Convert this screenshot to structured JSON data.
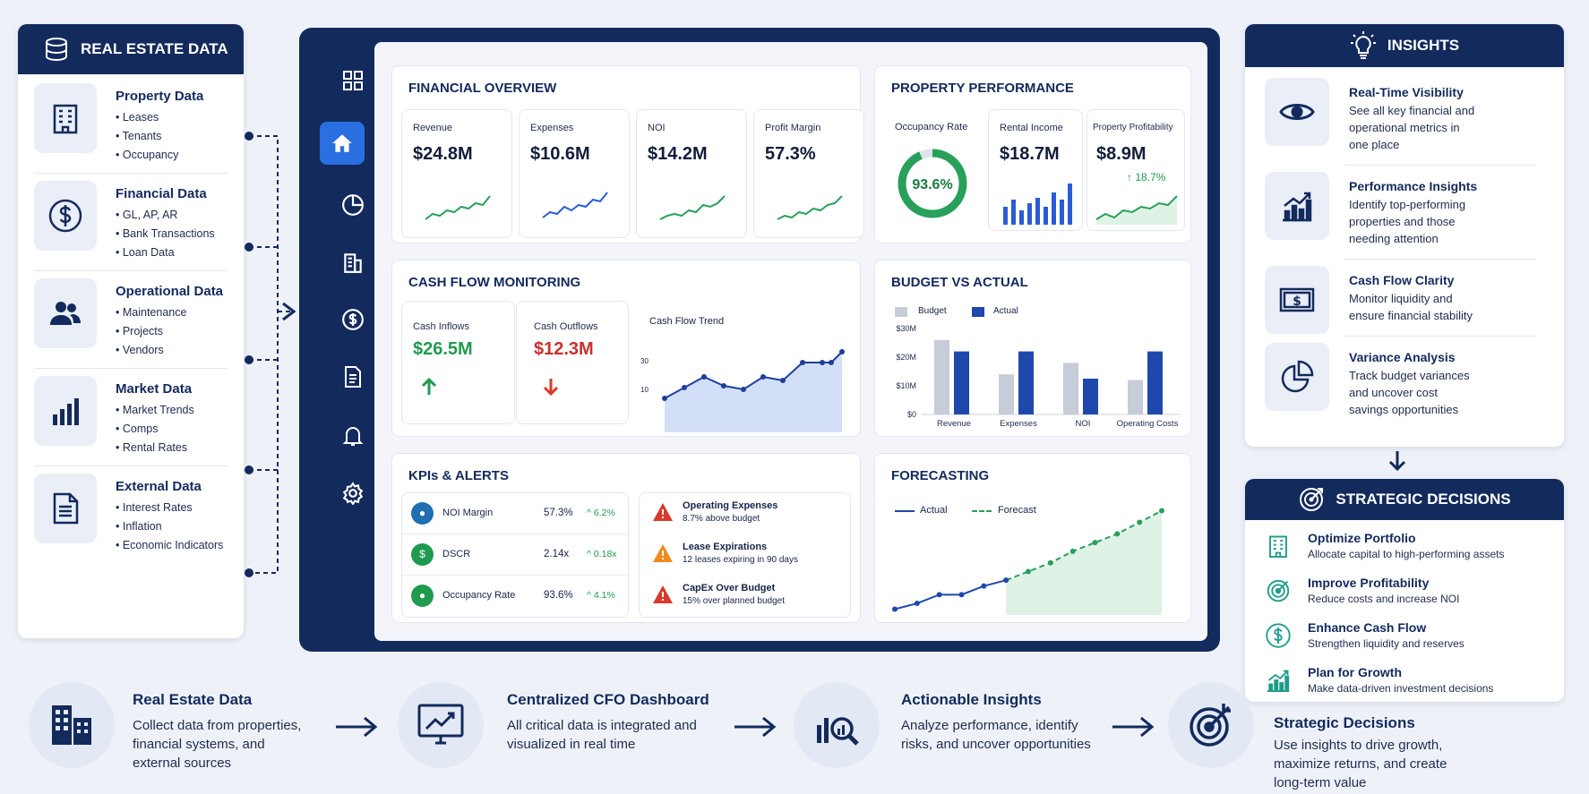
{
  "left": {
    "header": "REAL ESTATE DATA",
    "groups": [
      {
        "title": "Property Data",
        "items": [
          "• Leases",
          "• Tenants",
          "• Occupancy"
        ],
        "icon": "building-icon"
      },
      {
        "title": "Financial Data",
        "items": [
          "• GL, AP, AR",
          "• Bank Transactions",
          "• Loan Data"
        ],
        "icon": "dollar-icon"
      },
      {
        "title": "Operational Data",
        "items": [
          "• Maintenance",
          "• Projects",
          "• Vendors"
        ],
        "icon": "people-icon"
      },
      {
        "title": "Market Data",
        "items": [
          "• Market Trends",
          "• Comps",
          "• Rental Rates"
        ],
        "icon": "bar-chart-icon"
      },
      {
        "title": "External Data",
        "items": [
          "• Interest Rates",
          "• Inflation",
          "• Economic Indicators"
        ],
        "icon": "document-icon"
      }
    ]
  },
  "dashboard": {
    "sidebar": [
      "grid-icon",
      "home-icon",
      "pie-chart-icon",
      "building-icon",
      "dollar-icon",
      "document-icon",
      "bell-icon",
      "gear-icon"
    ],
    "financial_overview": {
      "title": "FINANCIAL OVERVIEW",
      "kpis": [
        {
          "label": "Revenue",
          "value": "$24.8M"
        },
        {
          "label": "Expenses",
          "value": "$10.6M"
        },
        {
          "label": "NOI",
          "value": "$14.2M"
        },
        {
          "label": "Profit Margin",
          "value": "57.3%"
        }
      ]
    },
    "property_performance": {
      "title": "PROPERTY PERFORMANCE",
      "occupancy_label": "Occupancy Rate",
      "occupancy_value": "93.6%",
      "occupancy": 0.936,
      "rental_label": "Rental Income",
      "rental_value": "$18.7M",
      "profit_label": "Property Profitability",
      "profit_value": "$8.9M",
      "profit_change": "↑ 18.7%"
    },
    "cash_flow": {
      "title": "CASH FLOW MONITORING",
      "inflows_label": "Cash Inflows",
      "inflows_value": "$26.5M",
      "outflows_label": "Cash Outflows",
      "outflows_value": "$12.3M",
      "trend_label": "Cash Flow Trend",
      "y_ticks": [
        "30",
        "10"
      ]
    },
    "budget": {
      "title": "BUDGET VS ACTUAL",
      "legend_budget": "Budget",
      "legend_actual": "Actual"
    },
    "kpis": {
      "title": "KPIs & ALERTS",
      "rows": [
        {
          "label": "NOI Margin",
          "value": "57.3%",
          "change": "^ 6.2%"
        },
        {
          "label": "DSCR",
          "value": "2.14x",
          "change": "^ 0.18x"
        },
        {
          "label": "Occupancy Rate",
          "value": "93.6%",
          "change": "^ 4.1%"
        }
      ],
      "alerts": [
        {
          "title": "Operating Expenses",
          "desc": "8.7% above budget",
          "color": "#d93a2b"
        },
        {
          "title": "Lease Expirations",
          "desc": "12 leases expiring in 90 days",
          "color": "#f08a1c"
        },
        {
          "title": "CapEx Over Budget",
          "desc": "15% over planned budget",
          "color": "#d93a2b"
        }
      ]
    },
    "forecasting": {
      "title": "FORECASTING",
      "legend_actual": "Actual",
      "legend_forecast": "Forecast"
    }
  },
  "chart_data": [
    {
      "type": "bar",
      "title": "BUDGET VS ACTUAL",
      "categories": [
        "Revenue",
        "Expenses",
        "NOI",
        "Operating Costs"
      ],
      "y_ticks": [
        "$30M",
        "$20M",
        "$10M",
        "$0"
      ],
      "ylim": [
        0,
        30
      ],
      "series": [
        {
          "name": "Budget",
          "values": [
            26,
            14,
            18,
            12
          ]
        },
        {
          "name": "Actual",
          "values": [
            22,
            22,
            12.5,
            22
          ]
        }
      ]
    },
    {
      "type": "line",
      "title": "FORECASTING",
      "series": [
        {
          "name": "Actual",
          "values": [
            2,
            4,
            7,
            7,
            10,
            12
          ]
        },
        {
          "name": "Forecast",
          "values": [
            12,
            15,
            18,
            22,
            25,
            28,
            32,
            36
          ]
        }
      ]
    }
  ],
  "insights": {
    "header": "INSIGHTS",
    "items": [
      {
        "title": "Real-Time Visibility",
        "desc": [
          "See all key financial and",
          "operational metrics in",
          "one place"
        ],
        "icon": "eye-icon"
      },
      {
        "title": "Performance Insights",
        "desc": [
          "Identify top-performing",
          "properties and those",
          "needing attention"
        ],
        "icon": "growth-chart-icon"
      },
      {
        "title": "Cash Flow Clarity",
        "desc": [
          "Monitor liquidity and",
          "ensure financial stability"
        ],
        "icon": "banknote-icon"
      },
      {
        "title": "Variance Analysis",
        "desc": [
          "Track budget variances",
          "and uncover cost",
          "savings opportunities"
        ],
        "icon": "pie-chart-icon"
      }
    ]
  },
  "strategic": {
    "header": "STRATEGIC DECISIONS",
    "items": [
      {
        "title": "Optimize Portfolio",
        "desc": "Allocate capital to high-performing assets",
        "icon": "building-icon"
      },
      {
        "title": "Improve Profitability",
        "desc": "Reduce costs and increase NOI",
        "icon": "target-icon"
      },
      {
        "title": "Enhance Cash Flow",
        "desc": "Strengthen liquidity and reserves",
        "icon": "dollar-icon"
      },
      {
        "title": "Plan for Growth",
        "desc": "Make data-driven investment decisions",
        "icon": "growth-chart-icon"
      }
    ]
  },
  "flow": [
    {
      "title": "Real Estate Data",
      "desc": [
        "Collect data from properties,",
        "financial systems, and",
        "external sources"
      ],
      "icon": "buildings-icon"
    },
    {
      "title": "Centralized CFO Dashboard",
      "desc": [
        "All critical data is integrated and",
        "visualized in real time"
      ],
      "icon": "monitor-chart-icon"
    },
    {
      "title": "Actionable Insights",
      "desc": [
        "Analyze performance, identify",
        "risks, and uncover opportunities"
      ],
      "icon": "magnify-chart-icon"
    },
    {
      "title": "Strategic Decisions",
      "desc": [
        "Use insights to drive growth,",
        "maximize returns, and create",
        "long-term value"
      ],
      "icon": "target-arrow-icon"
    }
  ]
}
